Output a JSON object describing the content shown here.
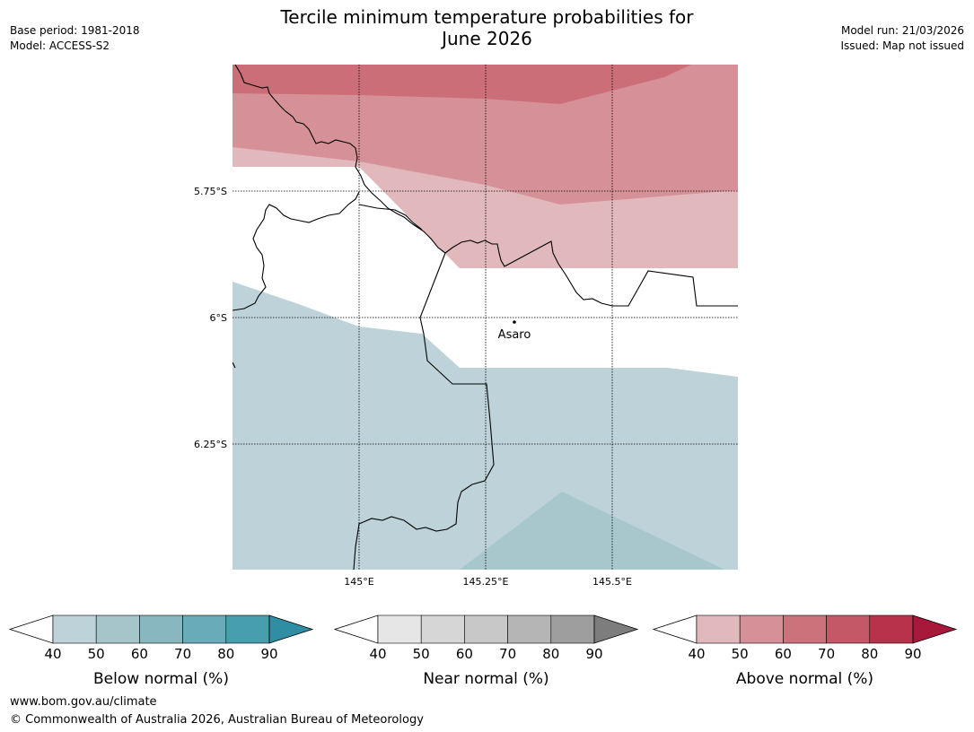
{
  "header": {
    "title_line1": "Tercile minimum temperature probabilities for",
    "title_line2": "June 2026",
    "base_period": "Base period: 1981-2018",
    "model": "Model: ACCESS-S2",
    "model_run": "Model run: 21/03/2026",
    "issued": "Issued: Map not issued"
  },
  "map": {
    "latitude_labels": [
      "5.75°S",
      "6°S",
      "6.25°S"
    ],
    "longitude_labels": [
      "145°E",
      "145.25°E",
      "145.5°E"
    ],
    "place_label": "Asaro"
  },
  "legends": [
    {
      "title": "Below normal (%)",
      "ticks": [
        "40",
        "50",
        "60",
        "70",
        "80",
        "90"
      ],
      "colors": [
        "#ffffff",
        "#bed3d9",
        "#a5c5cb",
        "#88b7c0",
        "#6aabb9",
        "#479ead",
        "#2f8da4"
      ]
    },
    {
      "title": "Near normal (%)",
      "ticks": [
        "40",
        "50",
        "60",
        "70",
        "80",
        "90"
      ],
      "colors": [
        "#ffffff",
        "#e6e6e6",
        "#d6d6d6",
        "#c8c8c8",
        "#b5b5b5",
        "#9e9e9e",
        "#7d7d7d"
      ]
    },
    {
      "title": "Above normal (%)",
      "ticks": [
        "40",
        "50",
        "60",
        "70",
        "80",
        "90"
      ],
      "colors": [
        "#ffffff",
        "#e1b8bc",
        "#d69097",
        "#cc727b",
        "#c45866",
        "#b9324b",
        "#a8183a"
      ]
    }
  ],
  "footer": {
    "url": "www.bom.gov.au/climate",
    "copyright": "© Commonwealth of Australia 2026, Australian Bureau of Meteorology"
  }
}
